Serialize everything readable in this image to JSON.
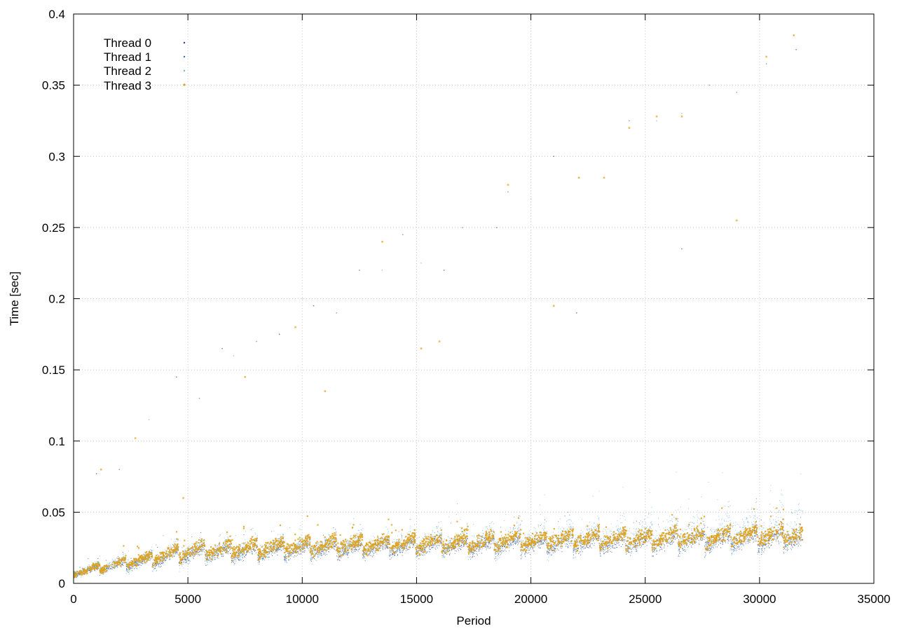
{
  "chart_data": {
    "type": "scatter",
    "title": "",
    "xlabel": "Period",
    "ylabel": "Time [sec]",
    "xlim": [
      0,
      35000
    ],
    "ylim": [
      0,
      0.4
    ],
    "x_ticks": [
      0,
      5000,
      10000,
      15000,
      20000,
      25000,
      30000,
      35000
    ],
    "x_tick_labels": [
      "0",
      "5000",
      "10000",
      "15000",
      "20000",
      "25000",
      "30000",
      "35000"
    ],
    "y_ticks": [
      0,
      0.05,
      0.1,
      0.15,
      0.2,
      0.25,
      0.3,
      0.35,
      0.4
    ],
    "y_tick_labels": [
      "0",
      "0.05",
      "0.1",
      "0.15",
      "0.2",
      "0.25",
      "0.3",
      "0.35",
      "0.4"
    ],
    "grid": true,
    "legend_position": "top-left",
    "series": [
      {
        "name": "Thread 0",
        "color": "#2f3f7f",
        "marker": "dot",
        "x_range": [
          0,
          31900
        ],
        "band_lower": [
          [
            0,
            0.004
          ],
          [
            5000,
            0.012
          ],
          [
            10000,
            0.015
          ],
          [
            15000,
            0.017
          ],
          [
            20000,
            0.018
          ],
          [
            25000,
            0.019
          ],
          [
            30000,
            0.02
          ],
          [
            31900,
            0.021
          ]
        ],
        "band_upper": [
          [
            0,
            0.01
          ],
          [
            5000,
            0.028
          ],
          [
            10000,
            0.03
          ],
          [
            15000,
            0.032
          ],
          [
            20000,
            0.035
          ],
          [
            25000,
            0.037
          ],
          [
            30000,
            0.039
          ],
          [
            31900,
            0.04
          ]
        ],
        "sawtooth_period": 1150,
        "outliers": [
          [
            1000,
            0.077
          ],
          [
            4500,
            0.145
          ],
          [
            6500,
            0.165
          ],
          [
            9000,
            0.175
          ],
          [
            10500,
            0.195
          ],
          [
            12500,
            0.22
          ],
          [
            16200,
            0.22
          ],
          [
            18500,
            0.25
          ],
          [
            21000,
            0.3
          ],
          [
            22000,
            0.19
          ],
          [
            26600,
            0.235
          ],
          [
            31600,
            0.375
          ]
        ]
      },
      {
        "name": "Thread 1",
        "color": "#3d6f9f",
        "marker": "dot",
        "x_range": [
          0,
          31900
        ],
        "band_lower": [
          [
            0,
            0.005
          ],
          [
            5000,
            0.013
          ],
          [
            10000,
            0.016
          ],
          [
            15000,
            0.018
          ],
          [
            20000,
            0.019
          ],
          [
            25000,
            0.02
          ],
          [
            30000,
            0.021
          ],
          [
            31900,
            0.022
          ]
        ],
        "band_upper": [
          [
            0,
            0.011
          ],
          [
            5000,
            0.03
          ],
          [
            10000,
            0.033
          ],
          [
            15000,
            0.035
          ],
          [
            20000,
            0.038
          ],
          [
            25000,
            0.04
          ],
          [
            30000,
            0.043
          ],
          [
            31900,
            0.045
          ]
        ],
        "sawtooth_period": 1150,
        "outliers": [
          [
            2000,
            0.08
          ],
          [
            5500,
            0.13
          ],
          [
            8000,
            0.17
          ],
          [
            11500,
            0.19
          ],
          [
            14400,
            0.245
          ],
          [
            17000,
            0.25
          ],
          [
            19000,
            0.275
          ],
          [
            24300,
            0.325
          ],
          [
            27800,
            0.35
          ],
          [
            29000,
            0.345
          ],
          [
            30300,
            0.365
          ]
        ]
      },
      {
        "name": "Thread 2",
        "color": "#6fb6d8",
        "marker": "dot",
        "x_range": [
          0,
          31900
        ],
        "band_lower": [
          [
            0,
            0.003
          ],
          [
            5000,
            0.01
          ],
          [
            10000,
            0.014
          ],
          [
            15000,
            0.016
          ],
          [
            20000,
            0.017
          ],
          [
            25000,
            0.018
          ],
          [
            30000,
            0.019
          ],
          [
            31900,
            0.02
          ]
        ],
        "band_upper": [
          [
            0,
            0.012
          ],
          [
            5000,
            0.032
          ],
          [
            10000,
            0.036
          ],
          [
            15000,
            0.04
          ],
          [
            20000,
            0.045
          ],
          [
            25000,
            0.05
          ],
          [
            30000,
            0.058
          ],
          [
            31900,
            0.065
          ]
        ],
        "sawtooth_period": 1150,
        "outliers": [
          [
            3300,
            0.115
          ],
          [
            7000,
            0.16
          ],
          [
            10000,
            0.2
          ],
          [
            13500,
            0.22
          ],
          [
            15200,
            0.225
          ],
          [
            20000,
            0.27
          ],
          [
            22100,
            0.285
          ],
          [
            25500,
            0.325
          ],
          [
            26600,
            0.33
          ],
          [
            31500,
            0.385
          ]
        ]
      },
      {
        "name": "Thread 3",
        "color": "#dea21c",
        "marker": "dot",
        "x_range": [
          0,
          31900
        ],
        "band_lower": [
          [
            0,
            0.004
          ],
          [
            5000,
            0.015
          ],
          [
            10000,
            0.018
          ],
          [
            15000,
            0.02
          ],
          [
            20000,
            0.022
          ],
          [
            25000,
            0.023
          ],
          [
            30000,
            0.024
          ],
          [
            31900,
            0.025
          ]
        ],
        "band_upper": [
          [
            0,
            0.011
          ],
          [
            5000,
            0.03
          ],
          [
            10000,
            0.034
          ],
          [
            15000,
            0.036
          ],
          [
            20000,
            0.038
          ],
          [
            25000,
            0.04
          ],
          [
            30000,
            0.042
          ],
          [
            31900,
            0.043
          ]
        ],
        "sawtooth_period": 1150,
        "outliers": [
          [
            1200,
            0.08
          ],
          [
            2700,
            0.102
          ],
          [
            4800,
            0.06
          ],
          [
            7500,
            0.145
          ],
          [
            9700,
            0.18
          ],
          [
            11000,
            0.135
          ],
          [
            13500,
            0.24
          ],
          [
            15200,
            0.165
          ],
          [
            16000,
            0.17
          ],
          [
            19000,
            0.28
          ],
          [
            21000,
            0.195
          ],
          [
            22100,
            0.285
          ],
          [
            23200,
            0.285
          ],
          [
            24300,
            0.32
          ],
          [
            25500,
            0.328
          ],
          [
            26600,
            0.328
          ],
          [
            29000,
            0.255
          ],
          [
            30300,
            0.37
          ],
          [
            31500,
            0.385
          ]
        ]
      }
    ]
  }
}
